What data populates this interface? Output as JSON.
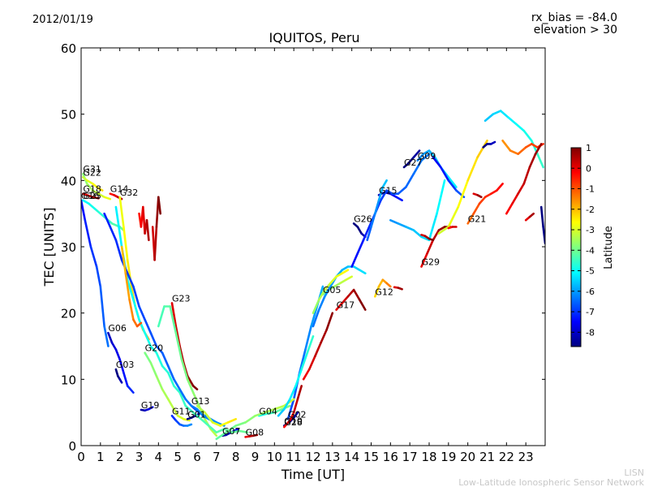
{
  "header": {
    "date": "2012/01/19",
    "rx_bias": "rx_bias = -84.0",
    "elevation": "elevation > 30"
  },
  "footer": {
    "brand_short": "LISN",
    "brand_long": "Low-Latitude Ionospheric Sensor Network"
  },
  "colors": {
    "background": "#ffffff",
    "footer_text": "#c8c8c8"
  },
  "chart_data": {
    "type": "line",
    "title": "IQUITOS, Peru",
    "xlabel": "Time [UT]",
    "ylabel": "TEC [UNITS]",
    "xlim": [
      0,
      24
    ],
    "ylim": [
      0,
      60
    ],
    "x_ticks": [
      0,
      1,
      2,
      3,
      4,
      5,
      6,
      7,
      8,
      9,
      10,
      11,
      12,
      13,
      14,
      15,
      16,
      17,
      18,
      19,
      20,
      21,
      22,
      23
    ],
    "y_ticks": [
      0,
      10,
      20,
      30,
      40,
      50,
      60
    ],
    "grid": false,
    "colorbar": {
      "label": "Latitude",
      "range": [
        -8.7,
        1
      ],
      "ticks": [
        1,
        0,
        -1,
        -2,
        -3,
        -4,
        -5,
        -6,
        -7,
        -8
      ],
      "colormap": "jet"
    },
    "series": [
      {
        "name": "G31",
        "lat": -3.2,
        "x": [
          0.1,
          0.3,
          0.6,
          0.9,
          1.2,
          1.5
        ],
        "y": [
          41.0,
          39.5,
          38.5,
          38.0,
          37.5,
          37.2
        ]
      },
      {
        "name": "G22",
        "lat": -2.6,
        "x": [
          0.1,
          0.3,
          0.6,
          0.9,
          1.1
        ],
        "y": [
          40.5,
          40.0,
          39.5,
          38.8,
          38.5
        ]
      },
      {
        "name": "G18",
        "lat": 0.3,
        "x": [
          0.1,
          0.3,
          0.6,
          0.9
        ],
        "y": [
          38.0,
          37.8,
          37.5,
          37.3
        ]
      },
      {
        "name": "G25",
        "lat": -4.5,
        "x": [
          0.1,
          0.4,
          0.8,
          1.2,
          1.6,
          2.0,
          2.2
        ],
        "y": [
          37.0,
          36.5,
          35.5,
          34.5,
          33.5,
          33.0,
          32.5
        ]
      },
      {
        "name": "G14",
        "lat": 0.2,
        "x": [
          1.5,
          1.7,
          1.9,
          2.1
        ],
        "y": [
          38.0,
          37.8,
          37.5,
          37.2
        ]
      },
      {
        "name": "G32",
        "lat": -2.2,
        "x": [
          2.0,
          2.2,
          2.4,
          2.6,
          2.8,
          3.0,
          3.2,
          3.5
        ],
        "y": [
          37.5,
          33.0,
          28.0,
          24.0,
          21.0,
          19.0,
          17.5,
          16.0
        ]
      },
      {
        "name": "G16",
        "lat": -6.8,
        "x": [
          0.0,
          0.2,
          0.5,
          0.8,
          1.0,
          1.2,
          1.4
        ],
        "y": [
          37.0,
          34.0,
          30.0,
          27.0,
          24.0,
          18.0,
          15.0
        ]
      },
      {
        "name": "G06",
        "lat": -7.5,
        "x": [
          1.4,
          1.6,
          1.8,
          2.0,
          2.2,
          2.4,
          2.7
        ],
        "y": [
          17.0,
          15.5,
          14.5,
          13.0,
          11.0,
          9.0,
          8.0
        ]
      },
      {
        "name": "G03",
        "lat": -8.4,
        "x": [
          1.8,
          1.9,
          2.0,
          2.1
        ],
        "y": [
          11.5,
          10.5,
          10.0,
          9.5
        ]
      },
      {
        "name": "G19",
        "lat": -7.8,
        "x": [
          3.1,
          3.3,
          3.5,
          3.7
        ],
        "y": [
          5.4,
          5.3,
          5.5,
          5.8
        ]
      },
      {
        "name": "G20",
        "lat": -3.3,
        "x": [
          3.3,
          3.6,
          3.9,
          4.2,
          4.5,
          4.8,
          5.0,
          5.3,
          5.6
        ],
        "y": [
          14.0,
          12.5,
          10.5,
          8.5,
          7.0,
          5.5,
          4.5,
          4.0,
          3.8
        ]
      },
      {
        "name": "G23",
        "lat": 0.7,
        "x": [
          4.7,
          4.9,
          5.1,
          5.3,
          5.5,
          5.8,
          6.0
        ],
        "y": [
          21.5,
          18.0,
          15.0,
          12.5,
          10.5,
          9.0,
          8.5
        ]
      },
      {
        "name": "G13",
        "lat": -6.5,
        "x": [
          5.7,
          5.9,
          6.1,
          6.4,
          6.7,
          7.0
        ],
        "y": [
          6.0,
          5.5,
          5.0,
          4.5,
          4.0,
          3.5
        ]
      },
      {
        "name": "G01",
        "lat": -8.4,
        "x": [
          5.5,
          5.7,
          5.9,
          6.1
        ],
        "y": [
          4.0,
          4.2,
          4.5,
          4.8
        ]
      },
      {
        "name": "G11",
        "lat": -6.5,
        "x": [
          4.7,
          4.9,
          5.1,
          5.3,
          5.5,
          5.7
        ],
        "y": [
          4.5,
          3.8,
          3.2,
          3.0,
          3.0,
          3.2
        ]
      },
      {
        "name": "G07",
        "lat": -8.0,
        "x": [
          7.3,
          7.5,
          7.7,
          7.9,
          8.1
        ],
        "y": [
          1.5,
          1.6,
          1.9,
          2.2,
          2.5
        ]
      },
      {
        "name": "G08",
        "lat": 0.6,
        "x": [
          8.5,
          8.7,
          8.9,
          9.1
        ],
        "y": [
          1.3,
          1.4,
          1.5,
          1.6
        ]
      },
      {
        "name": "G04",
        "lat": -4.2,
        "x": [
          9.2,
          9.6,
          10.0,
          10.4,
          10.8
        ],
        "y": [
          4.5,
          4.8,
          5.0,
          5.5,
          6.0
        ]
      },
      {
        "name": "G10",
        "lat": -8.3,
        "x": [
          10.5,
          10.8,
          11.0,
          11.2
        ],
        "y": [
          3.0,
          3.6,
          4.2,
          5.0
        ]
      },
      {
        "name": "G28",
        "lat": 0.3,
        "x": [
          10.5,
          10.8,
          11.0,
          11.2,
          11.4
        ],
        "y": [
          2.8,
          3.8,
          5.0,
          7.0,
          9.0
        ]
      },
      {
        "name": "G02",
        "lat": -6.2,
        "x": [
          10.7,
          11.0,
          11.3,
          11.6,
          11.9,
          12.2,
          12.5
        ],
        "y": [
          4.0,
          7.0,
          11.0,
          14.5,
          18.0,
          21.0,
          24.0
        ]
      },
      {
        "name": "G05",
        "lat": -3.4,
        "x": [
          12.5,
          12.8,
          13.1,
          13.4,
          13.7,
          14.0
        ],
        "y": [
          22.8,
          23.5,
          24.0,
          24.5,
          25.0,
          25.5
        ]
      },
      {
        "name": "G17",
        "lat": 0.6,
        "x": [
          13.2,
          13.5,
          13.8,
          14.1,
          14.4,
          14.7
        ],
        "y": [
          20.5,
          21.5,
          22.5,
          23.5,
          22.0,
          20.5
        ]
      },
      {
        "name": "G26",
        "lat": -8.5,
        "x": [
          14.1,
          14.3,
          14.5,
          14.7
        ],
        "y": [
          33.5,
          33.0,
          32.0,
          31.5
        ]
      },
      {
        "name": "G12",
        "lat": -1.7,
        "x": [
          15.2,
          15.4,
          15.6,
          15.8,
          16.0
        ],
        "y": [
          22.5,
          24.0,
          25.0,
          24.5,
          24.0
        ]
      },
      {
        "name": "G15",
        "lat": -7.6,
        "x": [
          15.4,
          15.7,
          16.0,
          16.3,
          16.6
        ],
        "y": [
          37.8,
          38.2,
          38.0,
          37.5,
          37.0
        ]
      },
      {
        "name": "G27",
        "lat": -8.6,
        "x": [
          16.7,
          16.9,
          17.2,
          17.5
        ],
        "y": [
          42.0,
          42.5,
          43.5,
          44.5
        ]
      },
      {
        "name": "G09",
        "lat": -5.6,
        "x": [
          17.4,
          17.7,
          18.0,
          18.3,
          18.6,
          19.0,
          19.4
        ],
        "y": [
          43.0,
          44.0,
          44.5,
          43.5,
          42.0,
          40.5,
          39.0
        ]
      },
      {
        "name": "G29",
        "lat": 0.6,
        "x": [
          17.6,
          17.9,
          18.2,
          18.5,
          18.8,
          19.1
        ],
        "y": [
          27.0,
          29.0,
          31.0,
          32.5,
          33.0,
          33.0
        ]
      },
      {
        "name": "G21",
        "lat": -0.6,
        "x": [
          20.0,
          20.3,
          20.6,
          20.9,
          21.2,
          21.5,
          21.8
        ],
        "y": [
          33.5,
          35.0,
          36.5,
          37.5,
          38.0,
          38.5,
          39.5
        ]
      },
      {
        "name": "",
        "lat": -5.0,
        "x": [
          20.9,
          21.3,
          21.7,
          22.1,
          22.5,
          22.9,
          23.3,
          23.6,
          23.9
        ],
        "y": [
          49.0,
          50.0,
          50.5,
          49.5,
          48.5,
          47.5,
          46.0,
          44.0,
          42.0
        ]
      },
      {
        "name": "",
        "lat": -1.0,
        "x": [
          21.8,
          22.2,
          22.6,
          23.0,
          23.3,
          23.6,
          23.9
        ],
        "y": [
          46.0,
          44.5,
          44.0,
          45.0,
          45.5,
          45.0,
          45.5
        ]
      },
      {
        "name": "",
        "lat": -7.0,
        "x": [
          18.2,
          18.6,
          19.0,
          19.4,
          19.8
        ],
        "y": [
          43.5,
          42.0,
          40.0,
          38.5,
          37.5
        ]
      },
      {
        "name": "",
        "lat": -5.5,
        "x": [
          16.0,
          16.4,
          16.8,
          17.2,
          17.6,
          18.0,
          18.4,
          18.8
        ],
        "y": [
          34.0,
          33.5,
          33.0,
          32.5,
          31.5,
          31.0,
          35.0,
          40.0
        ]
      },
      {
        "name": "",
        "lat": -2.5,
        "x": [
          18.5,
          19.0,
          19.5,
          20.0,
          20.5,
          21.0
        ],
        "y": [
          32.0,
          33.0,
          36.0,
          40.0,
          43.5,
          46.0
        ]
      },
      {
        "name": "",
        "lat": 0.4,
        "x": [
          22.0,
          22.3,
          22.6,
          22.9,
          23.2,
          23.5,
          23.8
        ],
        "y": [
          35.0,
          36.5,
          38.0,
          39.5,
          42.0,
          44.0,
          45.5
        ]
      },
      {
        "name": "",
        "lat": -5.8,
        "x": [
          12.0,
          12.3,
          12.6,
          12.9,
          13.2,
          13.5,
          13.8,
          14.1,
          14.4,
          14.7
        ],
        "y": [
          18.0,
          20.5,
          22.5,
          24.0,
          25.5,
          26.5,
          27.0,
          27.0,
          26.5,
          26.0
        ]
      },
      {
        "name": "",
        "lat": -6.8,
        "x": [
          14.0,
          14.3,
          14.6,
          14.9,
          15.2,
          15.5,
          15.8,
          16.1,
          16.4,
          16.8,
          17.2,
          17.6,
          18.0
        ],
        "y": [
          27.0,
          29.0,
          31.0,
          33.0,
          35.0,
          37.0,
          38.5,
          38.0,
          38.0,
          39.0,
          41.0,
          43.0,
          44.0
        ]
      },
      {
        "name": "",
        "lat": -6.0,
        "x": [
          14.8,
          15.0,
          15.2,
          15.4,
          15.6,
          15.8
        ],
        "y": [
          31.0,
          33.0,
          35.0,
          37.0,
          39.0,
          40.0
        ]
      },
      {
        "name": "",
        "lat": -3.8,
        "x": [
          4.0,
          4.3,
          4.6,
          4.9,
          5.2,
          5.5,
          5.8,
          6.1,
          6.4,
          6.7,
          7.0
        ],
        "y": [
          18.0,
          21.0,
          21.0,
          17.0,
          13.0,
          10.0,
          8.0,
          6.0,
          4.0,
          2.5,
          1.5
        ]
      },
      {
        "name": "",
        "lat": -4.6,
        "x": [
          1.8,
          2.1,
          2.4,
          2.7,
          3.0,
          3.3,
          3.6,
          3.9,
          4.2,
          4.5,
          4.8,
          5.1,
          5.4,
          5.8,
          6.2,
          6.6,
          7.0,
          7.4,
          7.8,
          8.2,
          8.6
        ],
        "y": [
          36.0,
          30.0,
          25.0,
          22.0,
          19.0,
          17.0,
          15.0,
          14.0,
          12.0,
          11.0,
          9.0,
          8.0,
          6.0,
          5.0,
          4.0,
          3.0,
          2.0,
          2.5,
          2.0,
          2.2,
          2.0
        ]
      },
      {
        "name": "",
        "lat": -6.6,
        "x": [
          1.2,
          1.5,
          1.8,
          2.1,
          2.4,
          2.7,
          3.0,
          3.3,
          3.6,
          3.9,
          4.2,
          4.5,
          4.8,
          5.1,
          5.4,
          5.7,
          6.0,
          6.3,
          6.6,
          7.0,
          7.4
        ],
        "y": [
          35.0,
          33.0,
          31.0,
          28.0,
          26.0,
          24.0,
          21.0,
          19.0,
          17.0,
          15.0,
          14.0,
          12.0,
          10.0,
          8.5,
          7.0,
          6.0,
          5.5,
          4.5,
          4.0,
          3.5,
          3.0
        ]
      },
      {
        "name": "",
        "lat": -1.4,
        "x": [
          2.1,
          2.3,
          2.5,
          2.7,
          2.9,
          3.1
        ],
        "y": [
          30.0,
          26.0,
          22.0,
          19.0,
          18.0,
          18.5
        ]
      },
      {
        "name": "",
        "lat": 0.2,
        "x": [
          3.0,
          3.1,
          3.2,
          3.3,
          3.4,
          3.5
        ],
        "y": [
          35.0,
          33.0,
          36.0,
          32.0,
          34.0,
          31.0
        ]
      },
      {
        "name": "",
        "lat": 0.8,
        "x": [
          3.7,
          3.8,
          3.9,
          4.0,
          4.1
        ],
        "y": [
          33.0,
          28.0,
          33.0,
          37.5,
          35.0
        ]
      },
      {
        "name": "",
        "lat": -3.6,
        "x": [
          7.0,
          7.5,
          8.0,
          8.5,
          9.0,
          9.5,
          10.0,
          10.5,
          11.0
        ],
        "y": [
          1.0,
          2.0,
          3.0,
          3.5,
          4.5,
          5.0,
          5.5,
          6.0,
          7.0
        ]
      },
      {
        "name": "",
        "lat": -2.8,
        "x": [
          6.0,
          6.4,
          6.8,
          7.2,
          7.6,
          8.0
        ],
        "y": [
          6.0,
          5.0,
          3.5,
          3.0,
          3.5,
          4.0
        ]
      },
      {
        "name": "",
        "lat": -5.0,
        "x": [
          10.2,
          10.5,
          10.8,
          11.1,
          11.4,
          11.7,
          12.0
        ],
        "y": [
          4.5,
          5.5,
          7.0,
          9.0,
          11.5,
          14.0,
          16.5
        ]
      },
      {
        "name": "",
        "lat": 0.5,
        "x": [
          11.5,
          11.8,
          12.1,
          12.4,
          12.7,
          13.0
        ],
        "y": [
          10.0,
          11.5,
          13.5,
          15.5,
          17.5,
          20.0
        ]
      },
      {
        "name": "",
        "lat": -3.0,
        "x": [
          12.0,
          12.3,
          12.6,
          12.9,
          13.2,
          13.5,
          13.8
        ],
        "y": [
          20.0,
          22.0,
          23.5,
          24.5,
          25.5,
          26.0,
          26.5
        ]
      },
      {
        "name": "",
        "lat": 0.7,
        "x": [
          16.2,
          16.4,
          16.6
        ],
        "y": [
          23.9,
          23.8,
          23.6
        ]
      },
      {
        "name": "",
        "lat": 0.8,
        "x": [
          17.6,
          17.8,
          18.0,
          18.2
        ],
        "y": [
          31.8,
          31.6,
          31.2,
          31.0
        ]
      },
      {
        "name": "",
        "lat": 0.7,
        "x": [
          20.3,
          20.5,
          20.7
        ],
        "y": [
          38.0,
          37.8,
          37.5
        ]
      },
      {
        "name": "",
        "lat": 0.6,
        "x": [
          23.0,
          23.2,
          23.4
        ],
        "y": [
          34.0,
          34.5,
          35.0
        ]
      },
      {
        "name": "",
        "lat": -8.3,
        "x": [
          20.8,
          21.0,
          21.2,
          21.4
        ],
        "y": [
          45.0,
          45.5,
          45.5,
          45.8
        ]
      },
      {
        "name": "",
        "lat": -8.6,
        "x": [
          23.8,
          23.9,
          24.0
        ],
        "y": [
          36.0,
          33.0,
          30.5
        ]
      },
      {
        "name": "",
        "lat": 0.2,
        "x": [
          19.0,
          19.2,
          19.4
        ],
        "y": [
          32.8,
          33.0,
          33.0
        ]
      }
    ]
  }
}
